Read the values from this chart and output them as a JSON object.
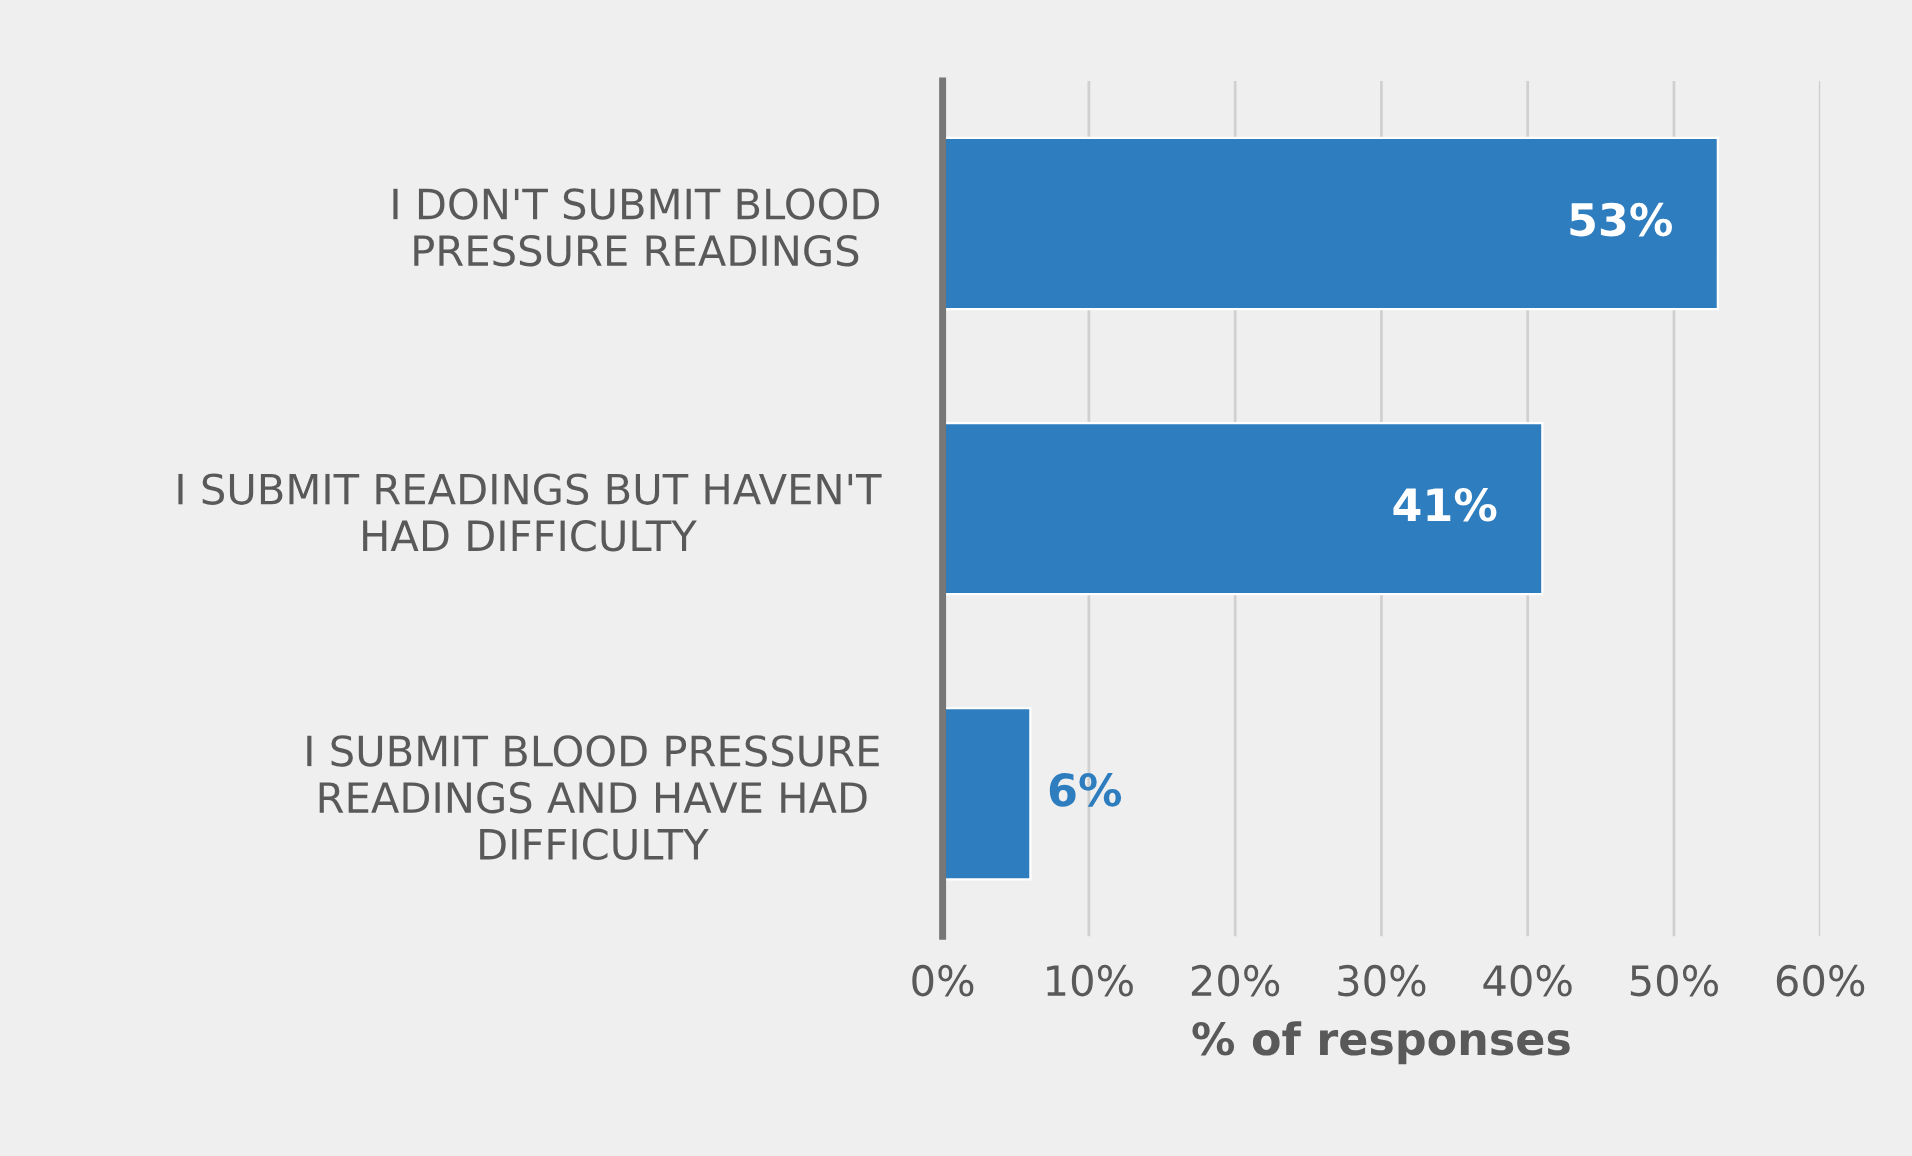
{
  "chart_data": {
    "type": "bar",
    "orientation": "horizontal",
    "xlabel": "% of responses",
    "categories": [
      "I DON'T SUBMIT BLOOD\nPRESSURE READINGS",
      "I SUBMIT READINGS BUT HAVEN'T\nHAD DIFFICULTY",
      "I SUBMIT BLOOD PRESSURE\nREADINGS AND HAVE HAD\nDIFFICULTY"
    ],
    "values": [
      53,
      41,
      6
    ],
    "color": "#2e7dbf",
    "value_labels": [
      "53%",
      "41%",
      "6%"
    ],
    "xlim": [
      0,
      60
    ],
    "xticks": [
      {
        "value": 0,
        "label": "0%"
      },
      {
        "value": 10,
        "label": "10%"
      },
      {
        "value": 20,
        "label": "20%"
      },
      {
        "value": 30,
        "label": "30%"
      },
      {
        "value": 40,
        "label": "40%"
      },
      {
        "value": 50,
        "label": "50%"
      },
      {
        "value": 60,
        "label": "60%"
      }
    ],
    "grid": "x"
  }
}
